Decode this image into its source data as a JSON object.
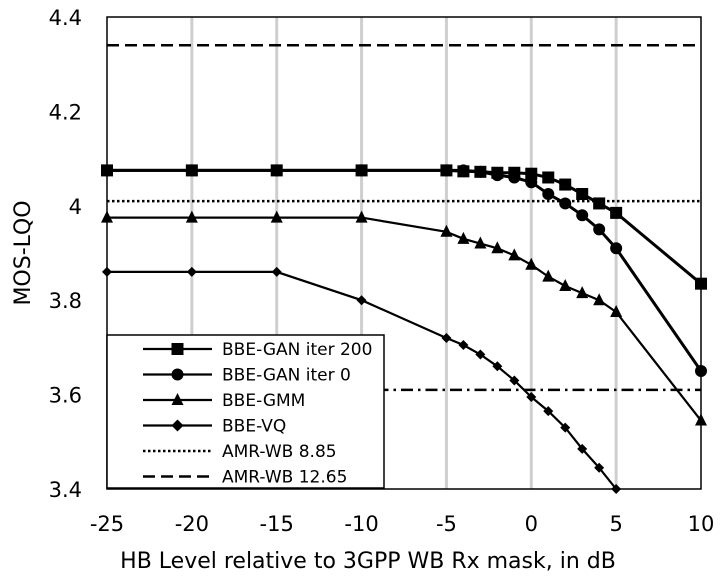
{
  "chart_data": {
    "type": "line",
    "title": "",
    "xlabel": "HB Level relative to 3GPP WB Rx mask, in dB",
    "ylabel": "MOS-LQO",
    "xlim": [
      -25,
      10
    ],
    "ylim": [
      3.4,
      4.4
    ],
    "x_ticks": [
      -25,
      -20,
      -15,
      -10,
      -5,
      0,
      5,
      10
    ],
    "x_tick_labels": [
      "-25",
      "-20",
      "-15",
      "-10",
      "-5",
      "0",
      "5",
      "10"
    ],
    "y_ticks": [
      3.4,
      3.6,
      3.8,
      4.0,
      4.2,
      4.4
    ],
    "y_tick_labels": [
      "3.4",
      "3.6",
      "3.8",
      "4",
      "4.2",
      "4.4"
    ],
    "grid": "vertical",
    "legend_position": "bottom-left",
    "series": [
      {
        "name": "BBE-GAN iter 200",
        "marker": "square",
        "linestyle": "solid",
        "x": [
          -25,
          -20,
          -15,
          -10,
          -5,
          -4,
          -3,
          -2,
          -1,
          0,
          1,
          2,
          3,
          4,
          5,
          10
        ],
        "y": [
          4.075,
          4.075,
          4.075,
          4.075,
          4.075,
          4.073,
          4.072,
          4.07,
          4.07,
          4.068,
          4.06,
          4.045,
          4.025,
          4.005,
          3.985,
          3.835
        ]
      },
      {
        "name": "BBE-GAN iter 0",
        "marker": "circle",
        "linestyle": "solid",
        "x": [
          -25,
          -20,
          -15,
          -10,
          -5,
          -4,
          -3,
          -2,
          -1,
          0,
          1,
          2,
          3,
          4,
          5,
          10
        ],
        "y": [
          4.075,
          4.075,
          4.075,
          4.075,
          4.075,
          4.075,
          4.072,
          4.065,
          4.06,
          4.05,
          4.025,
          4.005,
          3.98,
          3.95,
          3.91,
          3.65
        ]
      },
      {
        "name": "BBE-GMM",
        "marker": "triangle",
        "linestyle": "solid",
        "x": [
          -25,
          -20,
          -15,
          -10,
          -5,
          -4,
          -3,
          -2,
          -1,
          0,
          1,
          2,
          3,
          4,
          5,
          10
        ],
        "y": [
          3.975,
          3.975,
          3.975,
          3.975,
          3.945,
          3.93,
          3.92,
          3.91,
          3.895,
          3.875,
          3.85,
          3.83,
          3.815,
          3.8,
          3.775,
          3.545
        ]
      },
      {
        "name": "BBE-VQ",
        "marker": "diamond",
        "linestyle": "solid",
        "x": [
          -25,
          -20,
          -15,
          -10,
          -5,
          -4,
          -3,
          -2,
          -1,
          0,
          1,
          2,
          3,
          4,
          5
        ],
        "y": [
          3.86,
          3.86,
          3.86,
          3.8,
          3.72,
          3.705,
          3.685,
          3.66,
          3.63,
          3.595,
          3.565,
          3.53,
          3.485,
          3.445,
          3.4
        ]
      },
      {
        "name": "AMR-WB 8.85",
        "marker": "none",
        "linestyle": "dotted",
        "x": [
          -25,
          10
        ],
        "y": [
          4.01,
          4.01
        ]
      },
      {
        "name": "AMR-WB 12.65",
        "marker": "none",
        "linestyle": "dashed",
        "x": [
          -25,
          10
        ],
        "y": [
          4.34,
          4.34
        ]
      }
    ],
    "extra_lines": [
      {
        "name": "dash-dot-reference",
        "linestyle": "dashdot",
        "x": [
          -25,
          10
        ],
        "y": [
          3.61,
          3.61
        ]
      }
    ]
  }
}
